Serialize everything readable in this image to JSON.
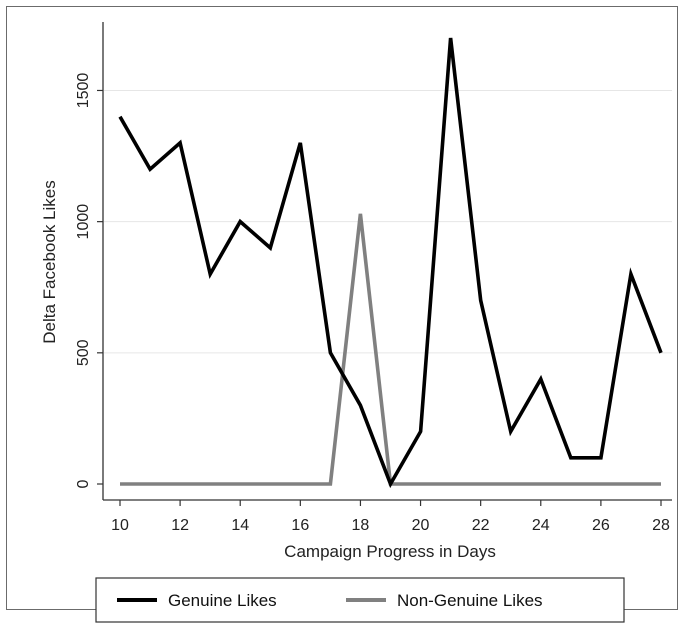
{
  "chart_data": {
    "type": "line",
    "xlabel": "Campaign Progress in Days",
    "ylabel": "Delta Facebook Likes",
    "xlim": [
      10,
      28
    ],
    "ylim": [
      0,
      1700
    ],
    "x_ticks": [
      10,
      12,
      14,
      16,
      18,
      20,
      22,
      24,
      26,
      28
    ],
    "y_ticks": [
      0,
      500,
      1000,
      1500
    ],
    "grid": "horizontal",
    "legend_position": "bottom",
    "x": [
      10,
      11,
      12,
      13,
      14,
      15,
      16,
      17,
      18,
      19,
      20,
      21,
      22,
      23,
      24,
      25,
      26,
      27,
      28
    ],
    "series": [
      {
        "name": "Genuine Likes",
        "color": "#000000",
        "values": [
          1400,
          1200,
          1300,
          800,
          1000,
          900,
          1300,
          500,
          300,
          0,
          200,
          1700,
          700,
          200,
          400,
          100,
          100,
          800,
          500
        ]
      },
      {
        "name": "Non-Genuine Likes",
        "color": "#808080",
        "values": [
          0,
          0,
          0,
          0,
          0,
          0,
          0,
          0,
          1030,
          0,
          0,
          0,
          0,
          0,
          0,
          0,
          0,
          0,
          0
        ]
      }
    ]
  }
}
